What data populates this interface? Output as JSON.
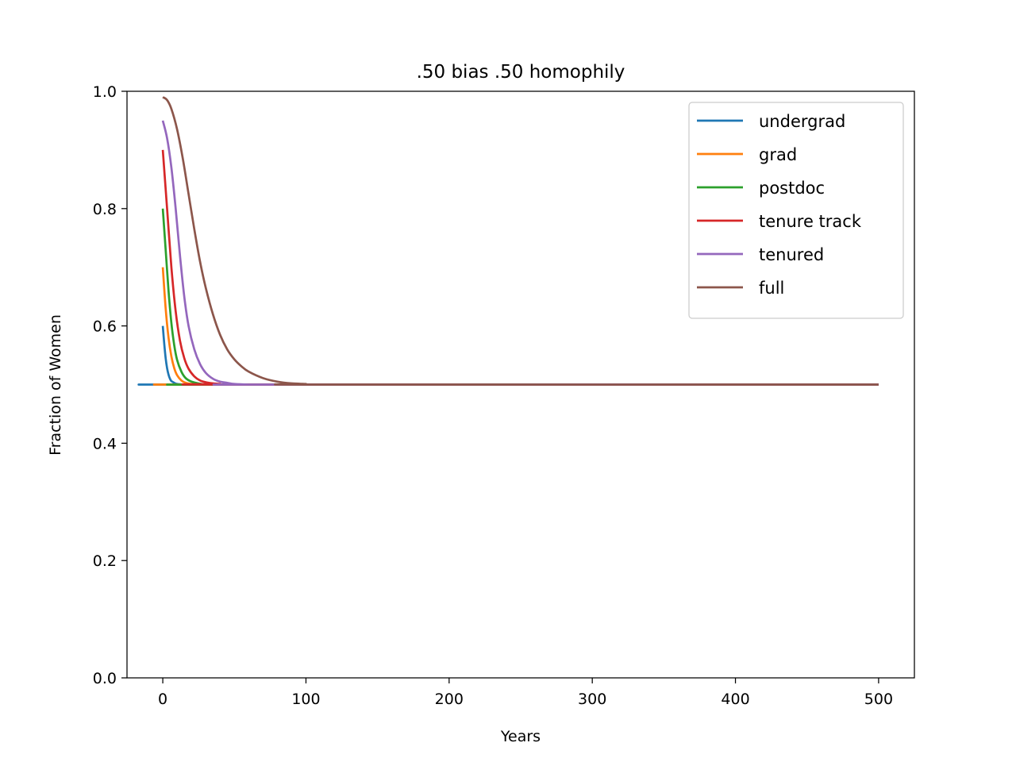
{
  "chart_data": {
    "type": "line",
    "title": ".50 bias .50 homophily",
    "xlabel": "Years",
    "ylabel": "Fraction of Women",
    "xlim": [
      -25,
      525
    ],
    "ylim": [
      0.0,
      1.0
    ],
    "xticks": [
      0,
      100,
      200,
      300,
      400,
      500
    ],
    "xtick_labels": [
      "0",
      "100",
      "200",
      "300",
      "400",
      "500"
    ],
    "yticks": [
      0.0,
      0.2,
      0.4,
      0.6,
      0.8,
      1.0
    ],
    "ytick_labels": [
      "0.0",
      "0.2",
      "0.4",
      "0.6",
      "0.8",
      "1.0"
    ],
    "grid": false,
    "legend_position": "top-right",
    "series": [
      {
        "name": "undergrad",
        "color": "#1f77b4",
        "x": [
          0,
          1,
          2,
          3,
          4,
          5,
          6,
          8,
          10,
          15,
          20,
          500
        ],
        "y": [
          0.6,
          0.57,
          0.545,
          0.528,
          0.517,
          0.51,
          0.506,
          0.503,
          0.501,
          0.5,
          0.5,
          0.5
        ]
      },
      {
        "name": "grad",
        "color": "#ff7f0e",
        "x": [
          0,
          2,
          4,
          6,
          8,
          10,
          13,
          16,
          20,
          25,
          30,
          500
        ],
        "y": [
          0.7,
          0.63,
          0.58,
          0.548,
          0.528,
          0.516,
          0.507,
          0.503,
          0.501,
          0.5,
          0.5,
          0.5
        ]
      },
      {
        "name": "postdoc",
        "color": "#2ca02c",
        "x": [
          0,
          2,
          4,
          6,
          8,
          10,
          13,
          16,
          20,
          25,
          30,
          40,
          500
        ],
        "y": [
          0.8,
          0.73,
          0.66,
          0.605,
          0.567,
          0.542,
          0.522,
          0.511,
          0.505,
          0.502,
          0.5,
          0.5,
          0.5
        ]
      },
      {
        "name": "tenure track",
        "color": "#d62728",
        "x": [
          0,
          3,
          6,
          9,
          12,
          15,
          18,
          22,
          26,
          30,
          35,
          40,
          50,
          500
        ],
        "y": [
          0.9,
          0.8,
          0.7,
          0.625,
          0.575,
          0.545,
          0.527,
          0.514,
          0.507,
          0.504,
          0.502,
          0.501,
          0.5,
          0.5
        ]
      },
      {
        "name": "tenured",
        "color": "#9467bd",
        "x": [
          0,
          3,
          6,
          9,
          12,
          15,
          18,
          22,
          26,
          30,
          35,
          40,
          45,
          50,
          60,
          70,
          500
        ],
        "y": [
          0.95,
          0.92,
          0.87,
          0.8,
          0.72,
          0.65,
          0.6,
          0.56,
          0.535,
          0.52,
          0.51,
          0.505,
          0.503,
          0.501,
          0.5,
          0.5,
          0.5
        ]
      },
      {
        "name": "full",
        "color": "#8c564b",
        "x": [
          0,
          3,
          6,
          10,
          14,
          18,
          22,
          26,
          30,
          35,
          40,
          45,
          50,
          55,
          60,
          70,
          80,
          90,
          100,
          110,
          500
        ],
        "y": [
          0.99,
          0.985,
          0.97,
          0.935,
          0.885,
          0.825,
          0.765,
          0.71,
          0.665,
          0.62,
          0.585,
          0.56,
          0.543,
          0.531,
          0.522,
          0.511,
          0.505,
          0.502,
          0.501,
          0.5,
          0.5
        ]
      }
    ]
  }
}
